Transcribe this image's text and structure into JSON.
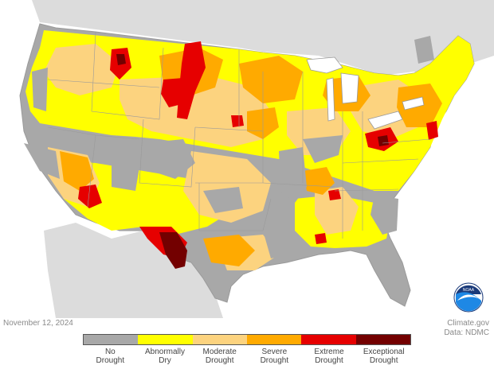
{
  "map": {
    "date": "November 12, 2024",
    "site_credit": "Climate.gov",
    "data_credit": "Data: NDMC",
    "logo_text": "NOAA"
  },
  "legend": [
    {
      "line1": "No",
      "line2": "Drought",
      "color": "#a8a8a8"
    },
    {
      "line1": "Abnormally",
      "line2": "Dry",
      "color": "#ffff00"
    },
    {
      "line1": "Moderate",
      "line2": "Drought",
      "color": "#fcd37f"
    },
    {
      "line1": "Severe",
      "line2": "Drought",
      "color": "#ffaa00"
    },
    {
      "line1": "Extreme",
      "line2": "Drought",
      "color": "#e60000"
    },
    {
      "line1": "Exceptional",
      "line2": "Drought",
      "color": "#730000"
    }
  ],
  "colors": {
    "ocean": "#ffffff",
    "land_outside": "#dcdcdc",
    "borders": "#9a9a9a"
  }
}
